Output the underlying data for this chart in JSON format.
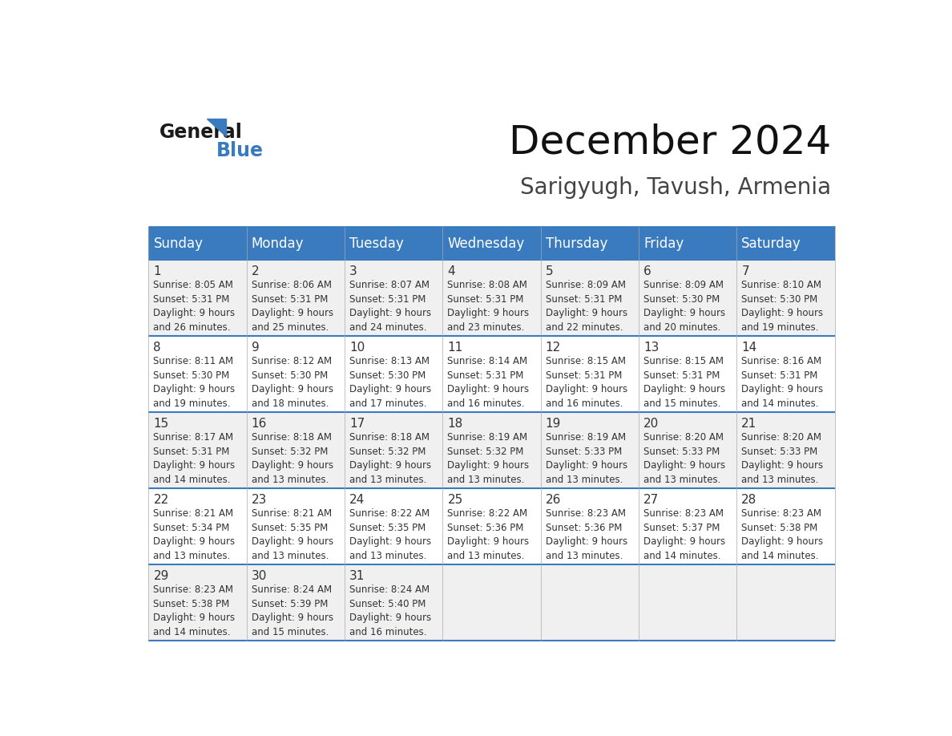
{
  "title": "December 2024",
  "subtitle": "Sarigyugh, Tavush, Armenia",
  "header_bg_color": "#3a7bbf",
  "header_text_color": "#ffffff",
  "cell_bg_color_odd": "#f0f0f0",
  "cell_bg_color_even": "#ffffff",
  "text_color": "#333333",
  "grid_line_color": "#aaaaaa",
  "days_of_week": [
    "Sunday",
    "Monday",
    "Tuesday",
    "Wednesday",
    "Thursday",
    "Friday",
    "Saturday"
  ],
  "calendar_data": [
    [
      {
        "day": "1",
        "sunrise": "8:05 AM",
        "sunset": "5:31 PM",
        "daylight": "9 hours\nand 26 minutes."
      },
      {
        "day": "2",
        "sunrise": "8:06 AM",
        "sunset": "5:31 PM",
        "daylight": "9 hours\nand 25 minutes."
      },
      {
        "day": "3",
        "sunrise": "8:07 AM",
        "sunset": "5:31 PM",
        "daylight": "9 hours\nand 24 minutes."
      },
      {
        "day": "4",
        "sunrise": "8:08 AM",
        "sunset": "5:31 PM",
        "daylight": "9 hours\nand 23 minutes."
      },
      {
        "day": "5",
        "sunrise": "8:09 AM",
        "sunset": "5:31 PM",
        "daylight": "9 hours\nand 22 minutes."
      },
      {
        "day": "6",
        "sunrise": "8:09 AM",
        "sunset": "5:30 PM",
        "daylight": "9 hours\nand 20 minutes."
      },
      {
        "day": "7",
        "sunrise": "8:10 AM",
        "sunset": "5:30 PM",
        "daylight": "9 hours\nand 19 minutes."
      }
    ],
    [
      {
        "day": "8",
        "sunrise": "8:11 AM",
        "sunset": "5:30 PM",
        "daylight": "9 hours\nand 19 minutes."
      },
      {
        "day": "9",
        "sunrise": "8:12 AM",
        "sunset": "5:30 PM",
        "daylight": "9 hours\nand 18 minutes."
      },
      {
        "day": "10",
        "sunrise": "8:13 AM",
        "sunset": "5:30 PM",
        "daylight": "9 hours\nand 17 minutes."
      },
      {
        "day": "11",
        "sunrise": "8:14 AM",
        "sunset": "5:31 PM",
        "daylight": "9 hours\nand 16 minutes."
      },
      {
        "day": "12",
        "sunrise": "8:15 AM",
        "sunset": "5:31 PM",
        "daylight": "9 hours\nand 16 minutes."
      },
      {
        "day": "13",
        "sunrise": "8:15 AM",
        "sunset": "5:31 PM",
        "daylight": "9 hours\nand 15 minutes."
      },
      {
        "day": "14",
        "sunrise": "8:16 AM",
        "sunset": "5:31 PM",
        "daylight": "9 hours\nand 14 minutes."
      }
    ],
    [
      {
        "day": "15",
        "sunrise": "8:17 AM",
        "sunset": "5:31 PM",
        "daylight": "9 hours\nand 14 minutes."
      },
      {
        "day": "16",
        "sunrise": "8:18 AM",
        "sunset": "5:32 PM",
        "daylight": "9 hours\nand 13 minutes."
      },
      {
        "day": "17",
        "sunrise": "8:18 AM",
        "sunset": "5:32 PM",
        "daylight": "9 hours\nand 13 minutes."
      },
      {
        "day": "18",
        "sunrise": "8:19 AM",
        "sunset": "5:32 PM",
        "daylight": "9 hours\nand 13 minutes."
      },
      {
        "day": "19",
        "sunrise": "8:19 AM",
        "sunset": "5:33 PM",
        "daylight": "9 hours\nand 13 minutes."
      },
      {
        "day": "20",
        "sunrise": "8:20 AM",
        "sunset": "5:33 PM",
        "daylight": "9 hours\nand 13 minutes."
      },
      {
        "day": "21",
        "sunrise": "8:20 AM",
        "sunset": "5:33 PM",
        "daylight": "9 hours\nand 13 minutes."
      }
    ],
    [
      {
        "day": "22",
        "sunrise": "8:21 AM",
        "sunset": "5:34 PM",
        "daylight": "9 hours\nand 13 minutes."
      },
      {
        "day": "23",
        "sunrise": "8:21 AM",
        "sunset": "5:35 PM",
        "daylight": "9 hours\nand 13 minutes."
      },
      {
        "day": "24",
        "sunrise": "8:22 AM",
        "sunset": "5:35 PM",
        "daylight": "9 hours\nand 13 minutes."
      },
      {
        "day": "25",
        "sunrise": "8:22 AM",
        "sunset": "5:36 PM",
        "daylight": "9 hours\nand 13 minutes."
      },
      {
        "day": "26",
        "sunrise": "8:23 AM",
        "sunset": "5:36 PM",
        "daylight": "9 hours\nand 13 minutes."
      },
      {
        "day": "27",
        "sunrise": "8:23 AM",
        "sunset": "5:37 PM",
        "daylight": "9 hours\nand 14 minutes."
      },
      {
        "day": "28",
        "sunrise": "8:23 AM",
        "sunset": "5:38 PM",
        "daylight": "9 hours\nand 14 minutes."
      }
    ],
    [
      {
        "day": "29",
        "sunrise": "8:23 AM",
        "sunset": "5:38 PM",
        "daylight": "9 hours\nand 14 minutes."
      },
      {
        "day": "30",
        "sunrise": "8:24 AM",
        "sunset": "5:39 PM",
        "daylight": "9 hours\nand 15 minutes."
      },
      {
        "day": "31",
        "sunrise": "8:24 AM",
        "sunset": "5:40 PM",
        "daylight": "9 hours\nand 16 minutes."
      },
      null,
      null,
      null,
      null
    ]
  ],
  "logo_text1": "General",
  "logo_text2": "Blue",
  "logo_color1": "#1a1a1a",
  "logo_color2": "#3a7bbf",
  "logo_triangle_color": "#3a7bbf",
  "title_fontsize": 36,
  "subtitle_fontsize": 20,
  "header_fontsize": 12,
  "day_num_fontsize": 11,
  "cell_text_fontsize": 8.5
}
